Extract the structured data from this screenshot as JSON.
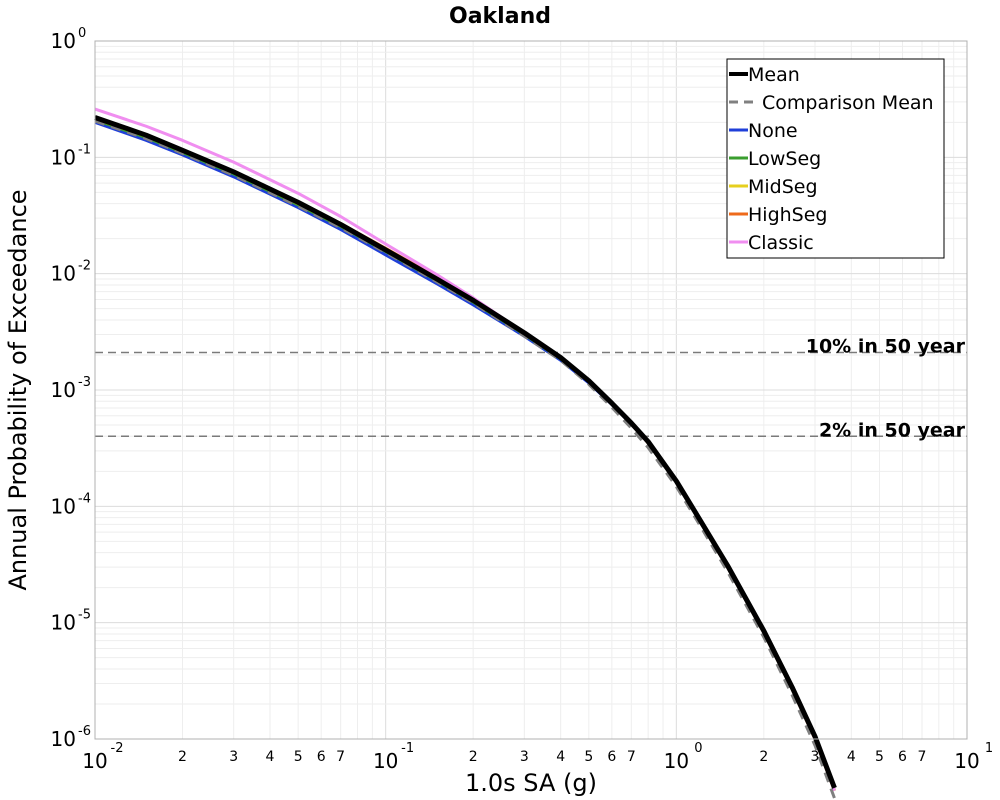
{
  "chart_data": {
    "type": "line",
    "title": "Oakland",
    "xlabel": "1.0s SA (g)",
    "ylabel": "Annual Probability of Exceedance",
    "xscale": "log",
    "yscale": "log",
    "xlim": [
      0.01,
      10
    ],
    "ylim": [
      1e-06,
      1
    ],
    "grid": true,
    "legend_position": "top-right",
    "x_major_ticks": [
      {
        "base": "10",
        "exp": "-2",
        "value": 0.01
      },
      {
        "base": "10",
        "exp": "-1",
        "value": 0.1
      },
      {
        "base": "10",
        "exp": "0",
        "value": 1
      },
      {
        "base": "10",
        "exp": "1",
        "value": 10
      }
    ],
    "x_minor_tick_labels": [
      "2",
      "3",
      "4",
      "5",
      "6",
      "7"
    ],
    "y_major_ticks": [
      {
        "base": "10",
        "exp": "0",
        "value": 1
      },
      {
        "base": "10",
        "exp": "-1",
        "value": 0.1
      },
      {
        "base": "10",
        "exp": "-2",
        "value": 0.01
      },
      {
        "base": "10",
        "exp": "-3",
        "value": 0.001
      },
      {
        "base": "10",
        "exp": "-4",
        "value": 0.0001
      },
      {
        "base": "10",
        "exp": "-5",
        "value": 1e-05
      },
      {
        "base": "10",
        "exp": "-6",
        "value": 1e-06
      }
    ],
    "reference_lines": [
      {
        "label": "10% in 50 year",
        "y": 0.0021
      },
      {
        "label": "2% in 50 year",
        "y": 0.0004
      }
    ],
    "series": [
      {
        "name": "None",
        "color": "#1f3fd9",
        "width": 3,
        "dash": "none",
        "x": [
          0.01,
          0.015,
          0.02,
          0.03,
          0.05,
          0.07,
          0.1,
          0.15,
          0.2,
          0.3,
          0.4,
          0.5,
          0.6,
          0.7,
          0.8,
          1.0,
          1.2,
          1.5,
          2.0,
          2.5,
          3.0,
          3.5
        ],
        "y": [
          0.2,
          0.14,
          0.105,
          0.068,
          0.037,
          0.024,
          0.0145,
          0.0082,
          0.0054,
          0.0029,
          0.0018,
          0.00115,
          0.00075,
          0.00051,
          0.00035,
          0.000165,
          7.8e-05,
          3.1e-05,
          8.5e-06,
          2.8e-06,
          1.04e-06,
          3.8e-07
        ]
      },
      {
        "name": "LowSeg",
        "color": "#3a9e2f",
        "width": 3,
        "dash": "none",
        "x": [
          0.01,
          0.015,
          0.02,
          0.03,
          0.05,
          0.07,
          0.1,
          0.15,
          0.2,
          0.3,
          0.4,
          0.5,
          0.6,
          0.7,
          0.8,
          1.0,
          1.2,
          1.5,
          2.0,
          2.5,
          3.0,
          3.5
        ],
        "y": [
          0.21,
          0.148,
          0.11,
          0.072,
          0.039,
          0.0255,
          0.0155,
          0.0087,
          0.0057,
          0.003,
          0.00185,
          0.00118,
          0.00076,
          0.00051,
          0.00035,
          0.000162,
          7.6e-05,
          3e-05,
          8.2e-06,
          2.7e-06,
          1e-06,
          3.6e-07
        ]
      },
      {
        "name": "MidSeg",
        "color": "#e6cf1e",
        "width": 3,
        "dash": "none",
        "x": [
          0.01,
          0.015,
          0.02,
          0.03,
          0.05,
          0.07,
          0.1,
          0.15,
          0.2,
          0.3,
          0.4,
          0.5,
          0.6,
          0.7,
          0.8,
          1.0,
          1.2,
          1.5,
          2.0,
          2.5,
          3.0,
          3.5
        ],
        "y": [
          0.215,
          0.152,
          0.113,
          0.074,
          0.04,
          0.026,
          0.0158,
          0.0089,
          0.0058,
          0.00305,
          0.00188,
          0.00119,
          0.00076,
          0.00051,
          0.00035,
          0.000162,
          7.6e-05,
          3e-05,
          8.2e-06,
          2.7e-06,
          1e-06,
          3.6e-07
        ]
      },
      {
        "name": "HighSeg",
        "color": "#ee6a1b",
        "width": 3,
        "dash": "none",
        "x": [
          0.01,
          0.015,
          0.02,
          0.03,
          0.05,
          0.07,
          0.1,
          0.15,
          0.2,
          0.3,
          0.4,
          0.5,
          0.6,
          0.7,
          0.8,
          1.0,
          1.2,
          1.5,
          2.0,
          2.5,
          3.0,
          3.5
        ],
        "y": [
          0.218,
          0.155,
          0.116,
          0.076,
          0.0415,
          0.027,
          0.0165,
          0.0093,
          0.006,
          0.0031,
          0.0019,
          0.0012,
          0.00077,
          0.00051,
          0.00035,
          0.000162,
          7.6e-05,
          3e-05,
          8.2e-06,
          2.7e-06,
          1e-06,
          3.6e-07
        ]
      },
      {
        "name": "Classic",
        "color": "#f08ef0",
        "width": 3,
        "dash": "none",
        "x": [
          0.01,
          0.015,
          0.02,
          0.03,
          0.05,
          0.07,
          0.1,
          0.15,
          0.2,
          0.3,
          0.4,
          0.5,
          0.6,
          0.7,
          0.8,
          1.0,
          1.2,
          1.5,
          2.0,
          2.5,
          3.0,
          3.5
        ],
        "y": [
          0.26,
          0.185,
          0.14,
          0.091,
          0.049,
          0.031,
          0.018,
          0.0098,
          0.0062,
          0.0031,
          0.00188,
          0.00118,
          0.00076,
          0.00051,
          0.00035,
          0.000162,
          7.6e-05,
          3e-05,
          8.2e-06,
          2.7e-06,
          1e-06,
          3.6e-07
        ]
      },
      {
        "name": "Comparison Mean",
        "color": "#808080",
        "width": 3,
        "dash": "10,7",
        "x": [
          0.01,
          0.015,
          0.02,
          0.03,
          0.05,
          0.07,
          0.1,
          0.15,
          0.2,
          0.3,
          0.4,
          0.5,
          0.6,
          0.7,
          0.8,
          1.0,
          1.2,
          1.5,
          2.0,
          2.5,
          3.0,
          3.5
        ],
        "y": [
          0.205,
          0.145,
          0.108,
          0.07,
          0.038,
          0.0248,
          0.0152,
          0.0085,
          0.0056,
          0.0029,
          0.0018,
          0.00112,
          0.00071,
          0.00047,
          0.00032,
          0.000148,
          7e-05,
          2.75e-05,
          7.5e-06,
          2.4e-06,
          8.8e-07,
          3.1e-07
        ]
      },
      {
        "name": "Mean",
        "color": "#000000",
        "width": 5,
        "dash": "none",
        "x": [
          0.01,
          0.015,
          0.02,
          0.03,
          0.05,
          0.07,
          0.1,
          0.15,
          0.2,
          0.3,
          0.4,
          0.5,
          0.6,
          0.7,
          0.8,
          1.0,
          1.2,
          1.5,
          2.0,
          2.5,
          3.0,
          3.5
        ],
        "y": [
          0.22,
          0.155,
          0.115,
          0.075,
          0.041,
          0.0265,
          0.016,
          0.009,
          0.0059,
          0.0031,
          0.0019,
          0.0012,
          0.00077,
          0.00052,
          0.00036,
          0.000165,
          7.8e-05,
          3.1e-05,
          8.5e-06,
          2.8e-06,
          1.05e-06,
          3.8e-07
        ]
      }
    ],
    "legend": [
      {
        "name": "Mean",
        "color": "#000000",
        "width": 4,
        "dash": "none"
      },
      {
        "name": "Comparison Mean",
        "color": "#808080",
        "width": 3,
        "dash": "9,6"
      },
      {
        "name": "None",
        "color": "#1f3fd9",
        "width": 3,
        "dash": "none"
      },
      {
        "name": "LowSeg",
        "color": "#3a9e2f",
        "width": 3,
        "dash": "none"
      },
      {
        "name": "MidSeg",
        "color": "#e6cf1e",
        "width": 3,
        "dash": "none"
      },
      {
        "name": "HighSeg",
        "color": "#ee6a1b",
        "width": 3,
        "dash": "none"
      },
      {
        "name": "Classic",
        "color": "#f08ef0",
        "width": 3,
        "dash": "none"
      }
    ]
  }
}
